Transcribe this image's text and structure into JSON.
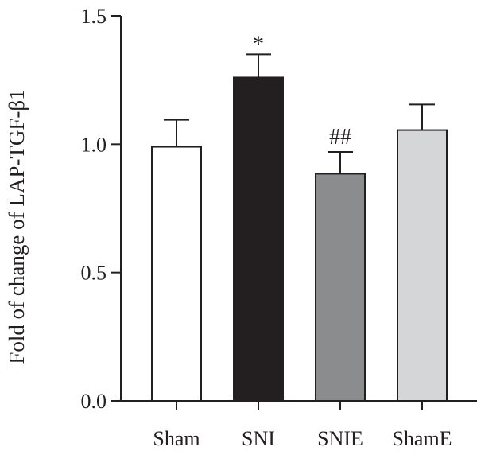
{
  "chart_data": {
    "type": "bar",
    "title": "",
    "xlabel": "",
    "ylabel": "Fold of change of LAP-TGF-β1",
    "ylim": [
      0,
      1.5
    ],
    "yticks": [
      "0.0",
      "0.5",
      "1.0",
      "1.5"
    ],
    "categories": [
      "Sham",
      "SNI",
      "SNIE",
      "ShamE"
    ],
    "values": [
      0.99,
      1.26,
      0.885,
      1.055
    ],
    "errors": [
      0.105,
      0.09,
      0.085,
      0.1
    ],
    "annotations": [
      "",
      "*",
      "##",
      ""
    ],
    "colors": [
      "#ffffff",
      "#231f20",
      "#8a8c8e",
      "#d5d6d7"
    ],
    "grid": false,
    "legend": "none"
  }
}
